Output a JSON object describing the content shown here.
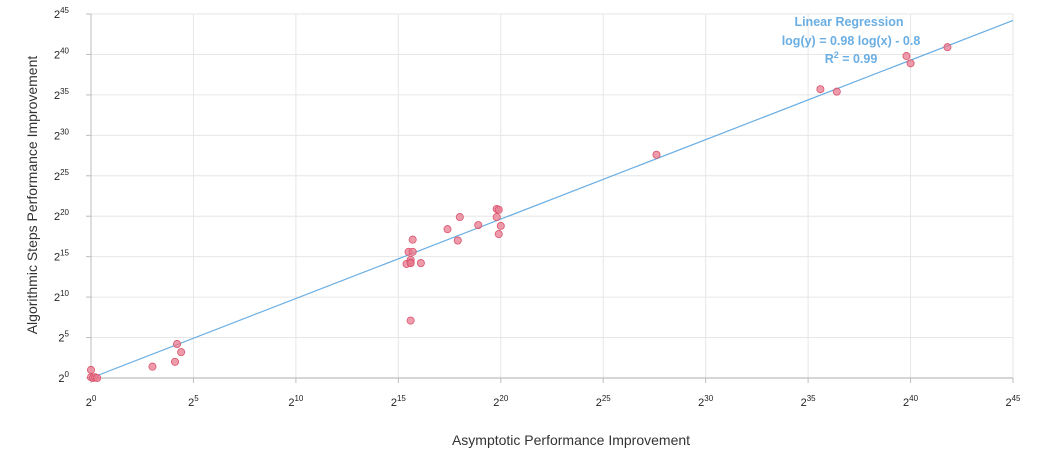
{
  "chart_data": {
    "type": "scatter",
    "xlabel": "Asymptotic Performance Improvement",
    "ylabel": "Algorithmic Steps Performance Improvement",
    "scale": "log2",
    "xlim": [
      0,
      45
    ],
    "ylim": [
      0,
      45
    ],
    "x_ticks": [
      {
        "base": "2",
        "exp": "0"
      },
      {
        "base": "2",
        "exp": "5"
      },
      {
        "base": "2",
        "exp": "10"
      },
      {
        "base": "2",
        "exp": "15"
      },
      {
        "base": "2",
        "exp": "20"
      },
      {
        "base": "2",
        "exp": "25"
      },
      {
        "base": "2",
        "exp": "30"
      },
      {
        "base": "2",
        "exp": "35"
      },
      {
        "base": "2",
        "exp": "40"
      },
      {
        "base": "2",
        "exp": "45"
      }
    ],
    "y_ticks": [
      {
        "base": "2",
        "exp": "0"
      },
      {
        "base": "2",
        "exp": "5"
      },
      {
        "base": "2",
        "exp": "10"
      },
      {
        "base": "2",
        "exp": "15"
      },
      {
        "base": "2",
        "exp": "20"
      },
      {
        "base": "2",
        "exp": "25"
      },
      {
        "base": "2",
        "exp": "30"
      },
      {
        "base": "2",
        "exp": "35"
      },
      {
        "base": "2",
        "exp": "40"
      },
      {
        "base": "2",
        "exp": "45"
      }
    ],
    "grid": true,
    "points_log2": [
      [
        0.0,
        1.0
      ],
      [
        0.0,
        0.1
      ],
      [
        0.1,
        0.0
      ],
      [
        0.2,
        0.1
      ],
      [
        0.3,
        0.0
      ],
      [
        3.0,
        1.4
      ],
      [
        4.1,
        2.0
      ],
      [
        4.2,
        4.2
      ],
      [
        4.4,
        3.2
      ],
      [
        15.4,
        14.1
      ],
      [
        15.5,
        15.6
      ],
      [
        15.6,
        14.3
      ],
      [
        15.6,
        14.6
      ],
      [
        15.6,
        14.2
      ],
      [
        15.7,
        15.6
      ],
      [
        15.7,
        17.1
      ],
      [
        15.6,
        7.1
      ],
      [
        16.1,
        14.2
      ],
      [
        17.4,
        18.4
      ],
      [
        17.9,
        17.0
      ],
      [
        18.0,
        19.9
      ],
      [
        18.9,
        18.9
      ],
      [
        19.8,
        20.9
      ],
      [
        19.8,
        19.9
      ],
      [
        19.9,
        17.8
      ],
      [
        19.9,
        20.8
      ],
      [
        20.0,
        18.8
      ],
      [
        27.6,
        27.6
      ],
      [
        35.6,
        35.7
      ],
      [
        36.4,
        35.4
      ],
      [
        39.8,
        39.8
      ],
      [
        40.0,
        38.9
      ],
      [
        41.8,
        40.9
      ]
    ],
    "regression": {
      "title": "Linear Regression",
      "equation": "log(y) = 0.98 log(x) - 0.8",
      "r2_prefix": "R",
      "r2_sup": "2",
      "r2_value": " = 0.99",
      "slope": 0.98,
      "intercept": -0.8,
      "color": "#6aaee3"
    },
    "point_color": "#e8798f",
    "point_stroke": "#d9536c"
  }
}
